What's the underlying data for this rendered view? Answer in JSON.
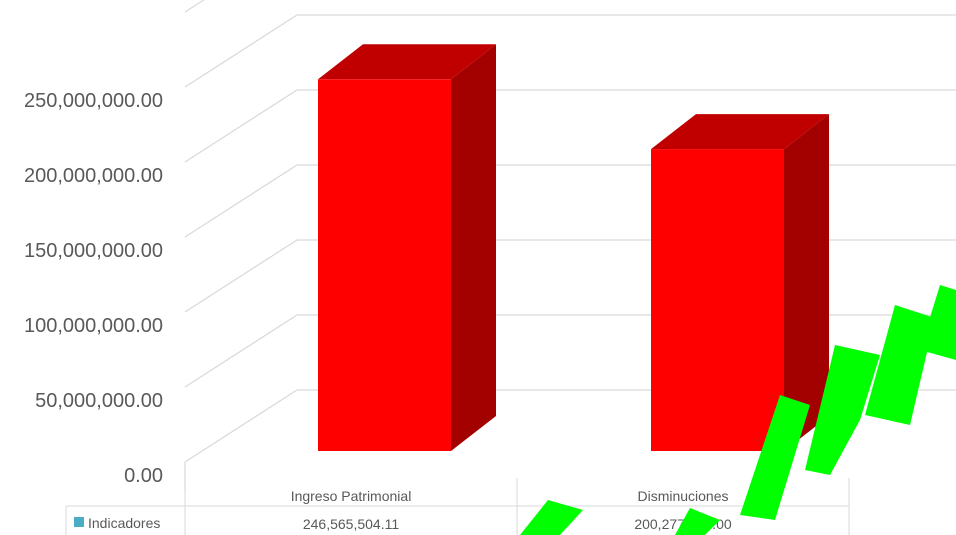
{
  "chart_data": {
    "type": "bar",
    "categories": [
      "Ingreso Patrimonial",
      "Disminuciones"
    ],
    "series": [
      {
        "name": "Indicadores",
        "values": [
          246565504.11,
          200277454.0
        ],
        "value_labels": [
          "246,565,504.11",
          "200,277,454.00"
        ],
        "color": "#FF0000"
      }
    ],
    "y_ticks": [
      0,
      50000000,
      100000000,
      150000000,
      200000000,
      250000000
    ],
    "y_tick_labels": [
      "0.00",
      "50,000,000.00",
      "100,000,000.00",
      "150,000,000.00",
      "200,000,000.00",
      "250,000,000.00"
    ],
    "ylim": [
      0,
      250000000
    ],
    "grid": true,
    "three_d": true,
    "legend": "data-table",
    "bar_side_color": "#A30000",
    "bar_top_color": "#C00000",
    "legend_key_color": "#4BACC6",
    "watermark_color": "#00FF00"
  }
}
